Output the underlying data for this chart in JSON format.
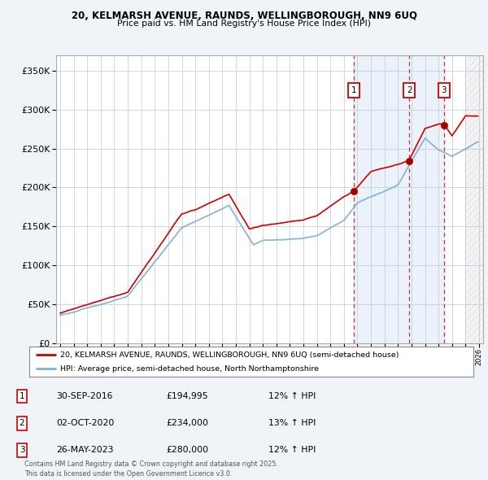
{
  "title1": "20, KELMARSH AVENUE, RAUNDS, WELLINGBOROUGH, NN9 6UQ",
  "title2": "Price paid vs. HM Land Registry's House Price Index (HPI)",
  "ylim": [
    0,
    370000
  ],
  "xlim_start": 1994.7,
  "xlim_end": 2026.3,
  "sale_dates": [
    2016.75,
    2020.83,
    2023.4
  ],
  "sale_prices": [
    194995,
    234000,
    280000
  ],
  "sale_labels": [
    "1",
    "2",
    "3"
  ],
  "sale_info": [
    {
      "label": "1",
      "date": "30-SEP-2016",
      "price": "£194,995",
      "hpi": "12% ↑ HPI"
    },
    {
      "label": "2",
      "date": "02-OCT-2020",
      "price": "£234,000",
      "hpi": "13% ↑ HPI"
    },
    {
      "label": "3",
      "date": "26-MAY-2023",
      "price": "£280,000",
      "hpi": "12% ↑ HPI"
    }
  ],
  "legend_line1": "20, KELMARSH AVENUE, RAUNDS, WELLINGBOROUGH, NN9 6UQ (semi-detached house)",
  "legend_line2": "HPI: Average price, semi-detached house, North Northamptonshire",
  "footer": "Contains HM Land Registry data © Crown copyright and database right 2025.\nThis data is licensed under the Open Government Licence v3.0.",
  "hpi_color": "#7eafd4",
  "sale_color": "#cc0000",
  "shade_color": "#ddeaf5",
  "background_color": "#f0f4f8",
  "plot_bg_color": "#ffffff",
  "grid_color": "#d0d8e0"
}
